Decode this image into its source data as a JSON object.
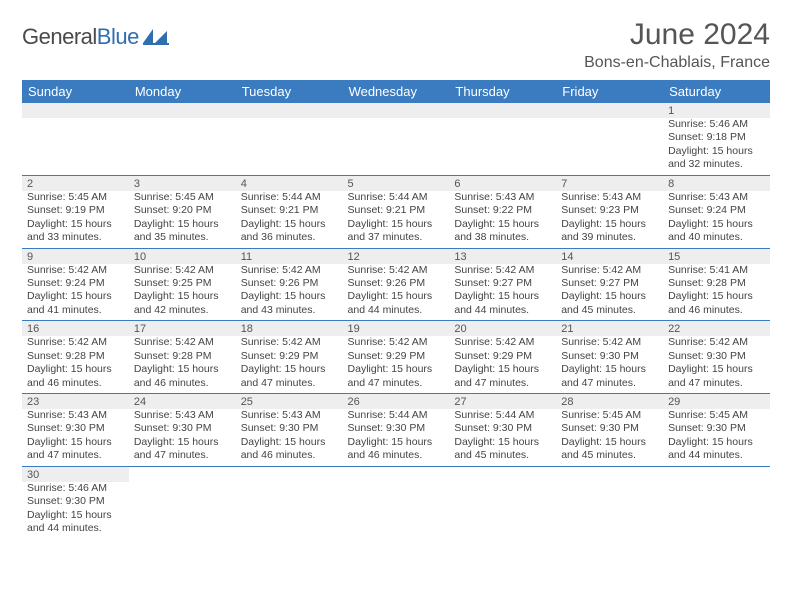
{
  "brand": {
    "name_prefix": "General",
    "name_suffix": "Blue"
  },
  "title": "June 2024",
  "location": "Bons-en-Chablais, France",
  "colors": {
    "header_bg": "#3b7bbf",
    "header_fg": "#ffffff",
    "daynum_bg": "#eeeeee",
    "row_border": "#3b7bbf",
    "text": "#444444",
    "title": "#555555"
  },
  "daysOfWeek": [
    "Sunday",
    "Monday",
    "Tuesday",
    "Wednesday",
    "Thursday",
    "Friday",
    "Saturday"
  ],
  "weeks": [
    [
      null,
      null,
      null,
      null,
      null,
      null,
      {
        "n": "1",
        "sr": "5:46 AM",
        "ss": "9:18 PM",
        "dl": "15 hours and 32 minutes."
      }
    ],
    [
      {
        "n": "2",
        "sr": "5:45 AM",
        "ss": "9:19 PM",
        "dl": "15 hours and 33 minutes."
      },
      {
        "n": "3",
        "sr": "5:45 AM",
        "ss": "9:20 PM",
        "dl": "15 hours and 35 minutes."
      },
      {
        "n": "4",
        "sr": "5:44 AM",
        "ss": "9:21 PM",
        "dl": "15 hours and 36 minutes."
      },
      {
        "n": "5",
        "sr": "5:44 AM",
        "ss": "9:21 PM",
        "dl": "15 hours and 37 minutes."
      },
      {
        "n": "6",
        "sr": "5:43 AM",
        "ss": "9:22 PM",
        "dl": "15 hours and 38 minutes."
      },
      {
        "n": "7",
        "sr": "5:43 AM",
        "ss": "9:23 PM",
        "dl": "15 hours and 39 minutes."
      },
      {
        "n": "8",
        "sr": "5:43 AM",
        "ss": "9:24 PM",
        "dl": "15 hours and 40 minutes."
      }
    ],
    [
      {
        "n": "9",
        "sr": "5:42 AM",
        "ss": "9:24 PM",
        "dl": "15 hours and 41 minutes."
      },
      {
        "n": "10",
        "sr": "5:42 AM",
        "ss": "9:25 PM",
        "dl": "15 hours and 42 minutes."
      },
      {
        "n": "11",
        "sr": "5:42 AM",
        "ss": "9:26 PM",
        "dl": "15 hours and 43 minutes."
      },
      {
        "n": "12",
        "sr": "5:42 AM",
        "ss": "9:26 PM",
        "dl": "15 hours and 44 minutes."
      },
      {
        "n": "13",
        "sr": "5:42 AM",
        "ss": "9:27 PM",
        "dl": "15 hours and 44 minutes."
      },
      {
        "n": "14",
        "sr": "5:42 AM",
        "ss": "9:27 PM",
        "dl": "15 hours and 45 minutes."
      },
      {
        "n": "15",
        "sr": "5:41 AM",
        "ss": "9:28 PM",
        "dl": "15 hours and 46 minutes."
      }
    ],
    [
      {
        "n": "16",
        "sr": "5:42 AM",
        "ss": "9:28 PM",
        "dl": "15 hours and 46 minutes."
      },
      {
        "n": "17",
        "sr": "5:42 AM",
        "ss": "9:28 PM",
        "dl": "15 hours and 46 minutes."
      },
      {
        "n": "18",
        "sr": "5:42 AM",
        "ss": "9:29 PM",
        "dl": "15 hours and 47 minutes."
      },
      {
        "n": "19",
        "sr": "5:42 AM",
        "ss": "9:29 PM",
        "dl": "15 hours and 47 minutes."
      },
      {
        "n": "20",
        "sr": "5:42 AM",
        "ss": "9:29 PM",
        "dl": "15 hours and 47 minutes."
      },
      {
        "n": "21",
        "sr": "5:42 AM",
        "ss": "9:30 PM",
        "dl": "15 hours and 47 minutes."
      },
      {
        "n": "22",
        "sr": "5:42 AM",
        "ss": "9:30 PM",
        "dl": "15 hours and 47 minutes."
      }
    ],
    [
      {
        "n": "23",
        "sr": "5:43 AM",
        "ss": "9:30 PM",
        "dl": "15 hours and 47 minutes."
      },
      {
        "n": "24",
        "sr": "5:43 AM",
        "ss": "9:30 PM",
        "dl": "15 hours and 47 minutes."
      },
      {
        "n": "25",
        "sr": "5:43 AM",
        "ss": "9:30 PM",
        "dl": "15 hours and 46 minutes."
      },
      {
        "n": "26",
        "sr": "5:44 AM",
        "ss": "9:30 PM",
        "dl": "15 hours and 46 minutes."
      },
      {
        "n": "27",
        "sr": "5:44 AM",
        "ss": "9:30 PM",
        "dl": "15 hours and 45 minutes."
      },
      {
        "n": "28",
        "sr": "5:45 AM",
        "ss": "9:30 PM",
        "dl": "15 hours and 45 minutes."
      },
      {
        "n": "29",
        "sr": "5:45 AM",
        "ss": "9:30 PM",
        "dl": "15 hours and 44 minutes."
      }
    ],
    [
      {
        "n": "30",
        "sr": "5:46 AM",
        "ss": "9:30 PM",
        "dl": "15 hours and 44 minutes."
      },
      null,
      null,
      null,
      null,
      null,
      null
    ]
  ],
  "labels": {
    "sunrise": "Sunrise: ",
    "sunset": "Sunset: ",
    "daylight": "Daylight: "
  }
}
